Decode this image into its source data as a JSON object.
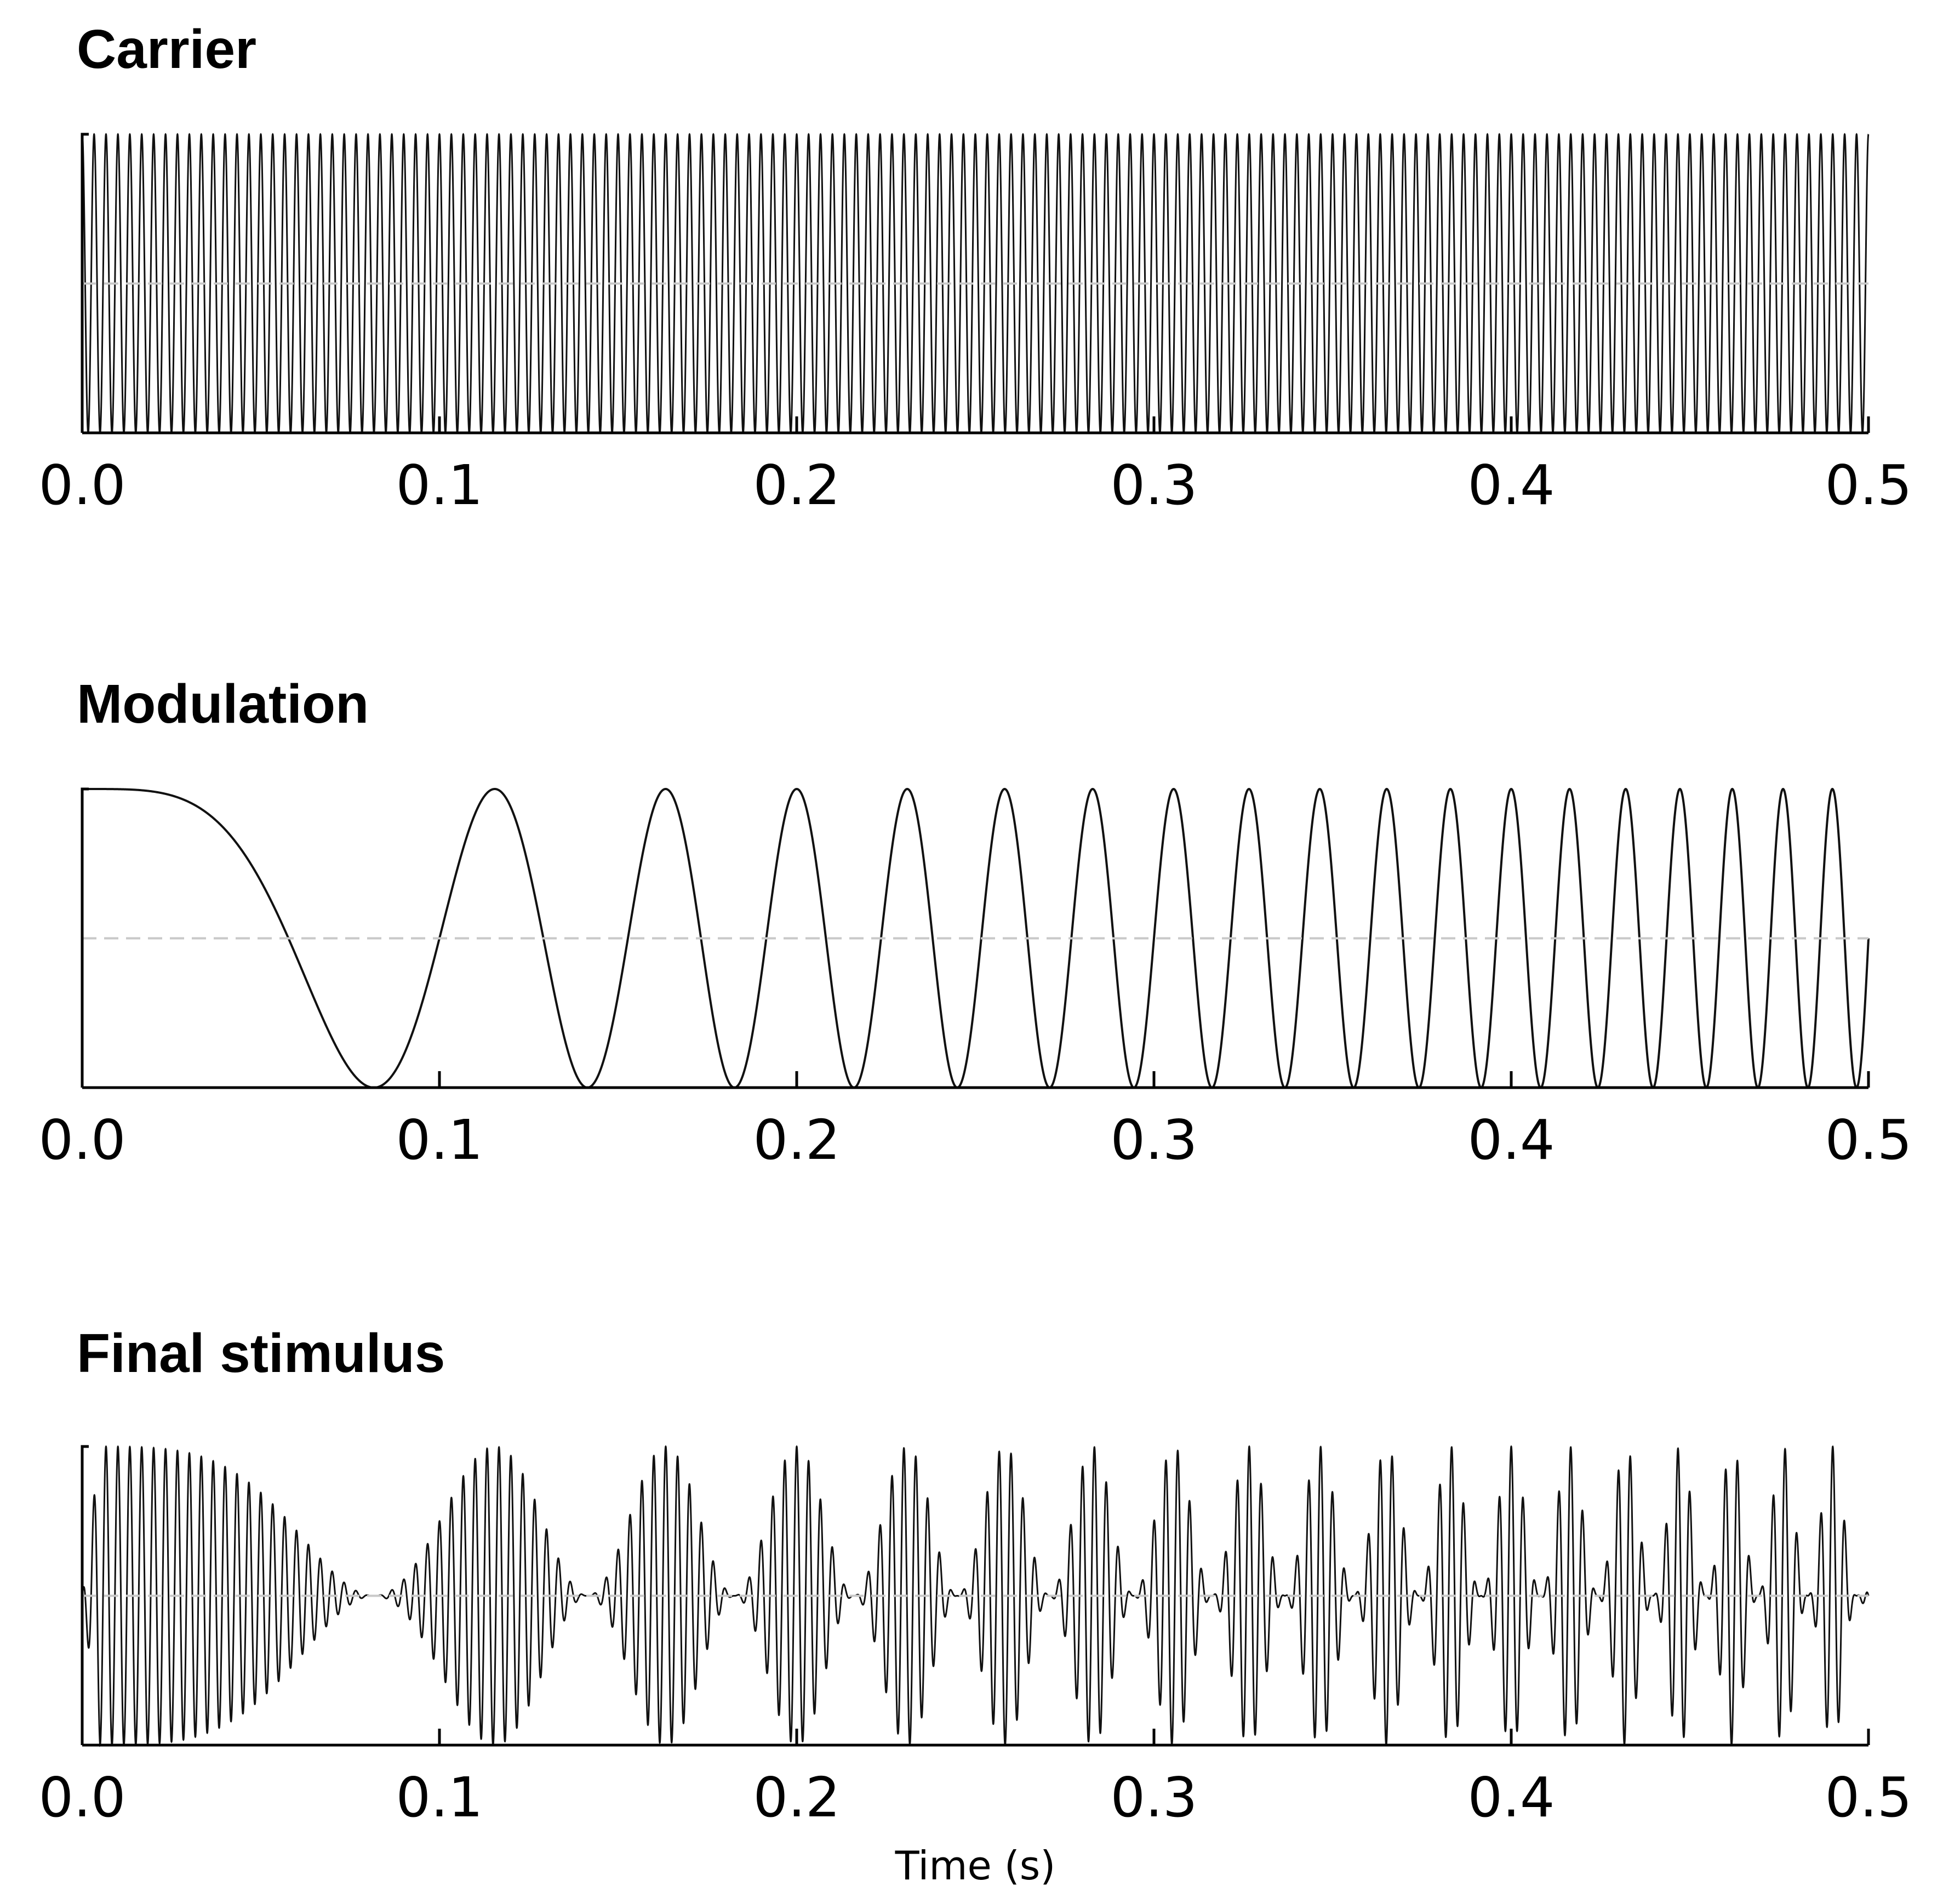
{
  "chart_data": [
    {
      "type": "line",
      "title": "Carrier",
      "xlim": [
        0,
        0.5
      ],
      "ylim": [
        -1,
        1
      ],
      "x_ticks": [
        "0.0",
        "0.1",
        "0.2",
        "0.3",
        "0.4",
        "0.5"
      ],
      "xlabel": "",
      "ylabel": "",
      "grid": false,
      "zero_line": "dashed",
      "series": [
        {
          "function": "cos(2*pi*f*t)",
          "frequency_hz": 300,
          "t_range": [
            0,
            0.5
          ]
        }
      ]
    },
    {
      "type": "line",
      "title": "Modulation",
      "xlim": [
        0,
        0.5
      ],
      "ylim": [
        -1,
        1
      ],
      "x_ticks": [
        "0.0",
        "0.1",
        "0.2",
        "0.3",
        "0.4",
        "0.5"
      ],
      "xlabel": "",
      "ylabel": "",
      "grid": false,
      "zero_line": "dashed",
      "series": [
        {
          "function": "cos(2*pi*(f0*t + k*t^2/2))",
          "f0_hz": 0,
          "chirp_rate_hz_per_s": 150,
          "t_range": [
            0,
            0.5
          ]
        }
      ]
    },
    {
      "type": "line",
      "title": "Final stimulus",
      "xlim": [
        0,
        0.5
      ],
      "ylim": [
        -1,
        1
      ],
      "x_ticks": [
        "0.0",
        "0.1",
        "0.2",
        "0.3",
        "0.4",
        "0.5"
      ],
      "xlabel": "Time (s)",
      "ylabel": "",
      "grid": false,
      "zero_line": "dashed",
      "series": [
        {
          "function": "ramp(t) * (0.5 + 0.5*modulation(t)) * carrier(t)",
          "ramp_s": 0.005,
          "t_range": [
            0,
            0.5
          ]
        }
      ]
    }
  ]
}
